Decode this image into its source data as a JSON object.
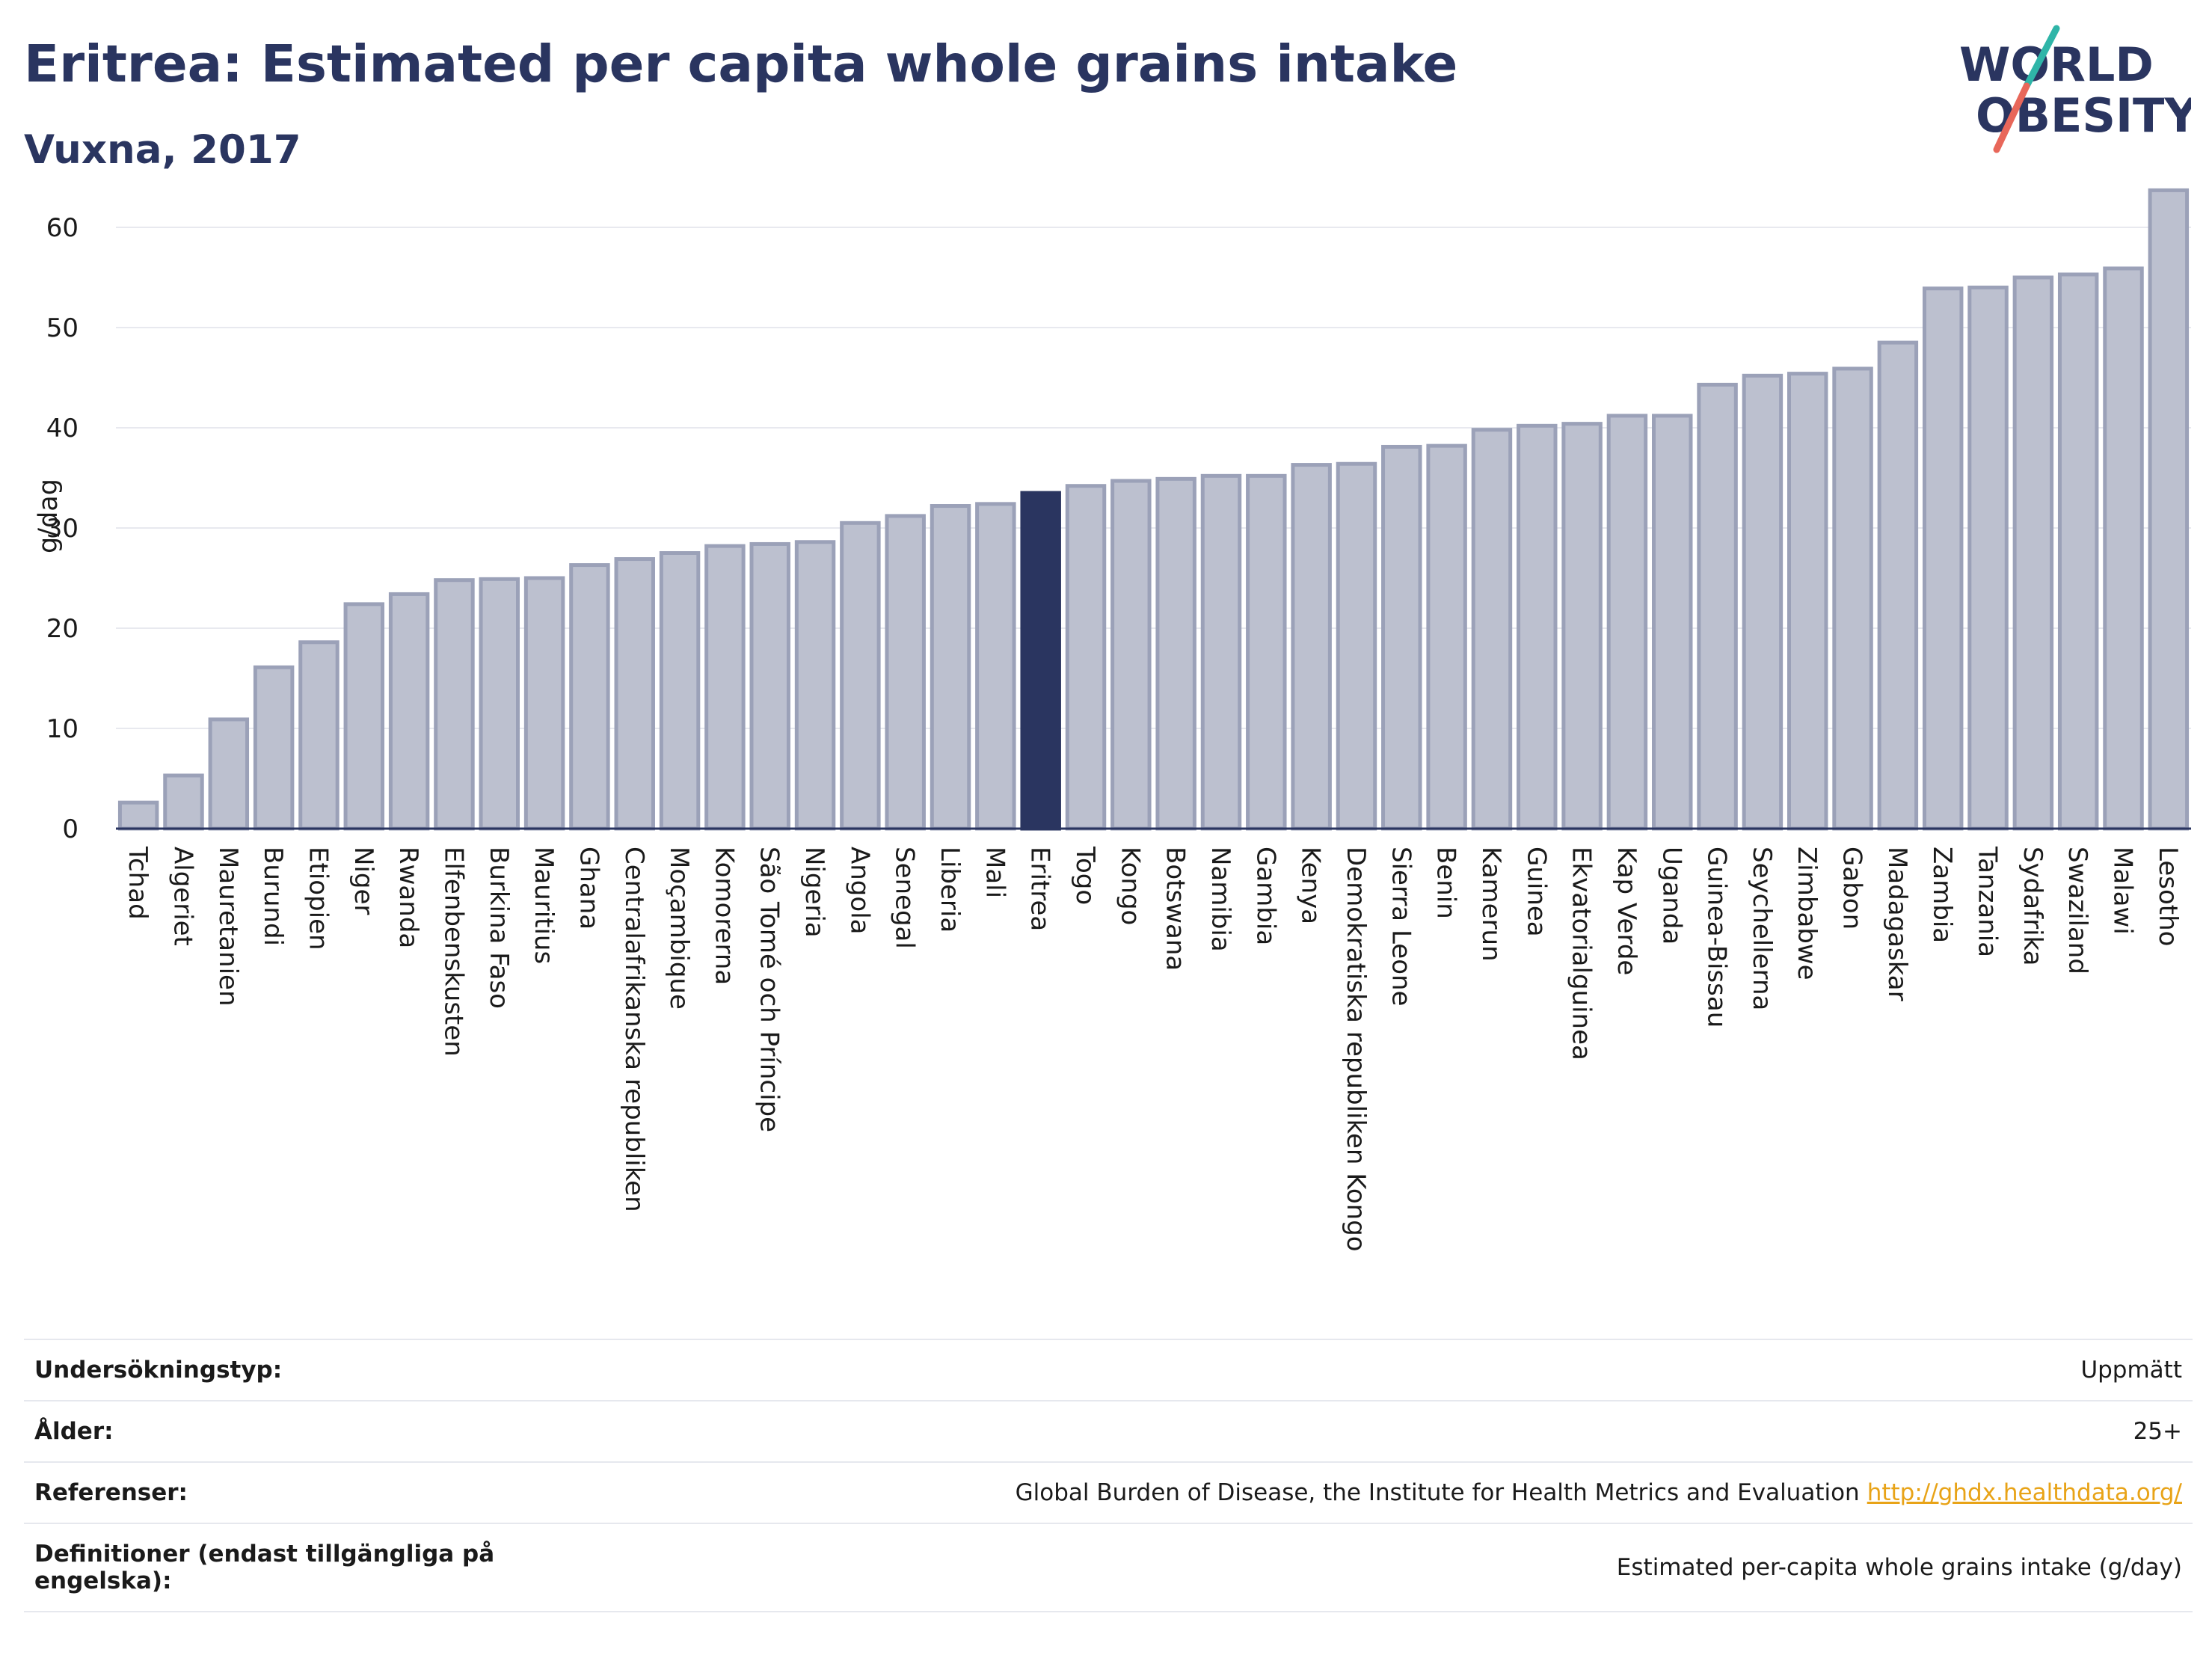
{
  "title": "Eritrea: Estimated per capita whole grains intake",
  "subtitle": "Vuxna, 2017",
  "logo": {
    "line1": "WORLD",
    "line2": "OBESITY"
  },
  "colors": {
    "bar": "#bcc0cf",
    "bar_border": "#9ba1b8",
    "highlight": "#2a3560",
    "title": "#2a3560",
    "link": "#e8a317",
    "logo_teal": "#2fb5a8",
    "logo_red": "#e8675a"
  },
  "chart_data": {
    "type": "bar",
    "ylabel": "g/dag",
    "ylim": [
      0,
      65
    ],
    "yticks": [
      0,
      10,
      20,
      30,
      40,
      50,
      60
    ],
    "grid": true,
    "highlight": "Eritrea",
    "categories": [
      "Tchad",
      "Algeriet",
      "Mauretanien",
      "Burundi",
      "Etiopien",
      "Niger",
      "Rwanda",
      "Elfenbenskusten",
      "Burkina Faso",
      "Mauritius",
      "Ghana",
      "Centralafrikanska republiken",
      "Moçambique",
      "Komorerna",
      "São Tomé och Príncipe",
      "Nigeria",
      "Angola",
      "Senegal",
      "Liberia",
      "Mali",
      "Eritrea",
      "Togo",
      "Kongo",
      "Botswana",
      "Namibia",
      "Gambia",
      "Kenya",
      "Demokratiska republiken Kongo",
      "Sierra Leone",
      "Benin",
      "Kamerun",
      "Guinea",
      "Ekvatorialguinea",
      "Kap Verde",
      "Uganda",
      "Guinea-Bissau",
      "Seychellerna",
      "Zimbabwe",
      "Gabon",
      "Madagaskar",
      "Zambia",
      "Tanzania",
      "Sydafrika",
      "Swaziland",
      "Malawi",
      "Lesotho"
    ],
    "values": [
      2.6,
      5.3,
      10.9,
      16.1,
      18.6,
      22.4,
      23.4,
      24.8,
      24.9,
      25.0,
      26.3,
      26.9,
      27.5,
      28.2,
      28.4,
      28.6,
      30.5,
      31.2,
      32.2,
      32.4,
      33.5,
      34.2,
      34.7,
      34.9,
      35.2,
      35.2,
      36.3,
      36.4,
      38.1,
      38.2,
      39.8,
      40.2,
      40.4,
      41.2,
      41.2,
      44.3,
      45.2,
      45.4,
      45.9,
      48.5,
      53.9,
      54.0,
      55.0,
      55.3,
      55.9,
      63.7
    ]
  },
  "info_rows": [
    {
      "key": "Undersökningstyp:",
      "value": "Uppmätt"
    },
    {
      "key": "Ålder:",
      "value": "25+"
    },
    {
      "key": "Referenser:",
      "value": "Global Burden of Disease, the Institute for Health Metrics and Evaluation",
      "link": "http://ghdx.healthdata.org/"
    },
    {
      "key": "Definitioner (endast tillgängliga på engelska):",
      "value": "Estimated per-capita whole grains intake (g/day)"
    }
  ]
}
